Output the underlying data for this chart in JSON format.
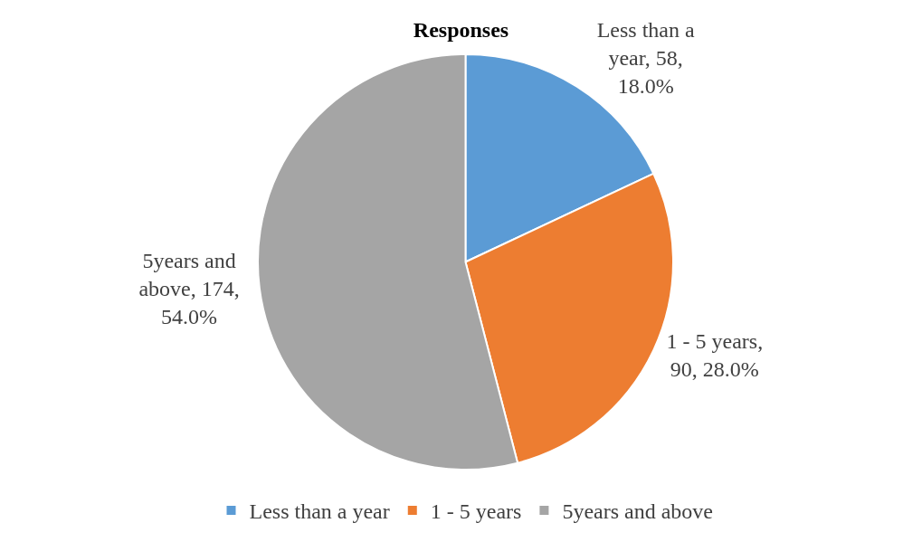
{
  "chart_data": {
    "type": "pie",
    "title": "Responses",
    "categories": [
      "Less than a year",
      "1 - 5 years",
      "5years and above"
    ],
    "values": [
      58,
      90,
      174
    ],
    "colors": [
      "#5b9bd5",
      "#ed7d31",
      "#a5a5a5"
    ],
    "value_labels": [
      "Less than a year, 58, 18.0%",
      "1 - 5 years, 90, 28.0%",
      "5years and above, 174, 54.0%"
    ],
    "legend": "bottom"
  }
}
